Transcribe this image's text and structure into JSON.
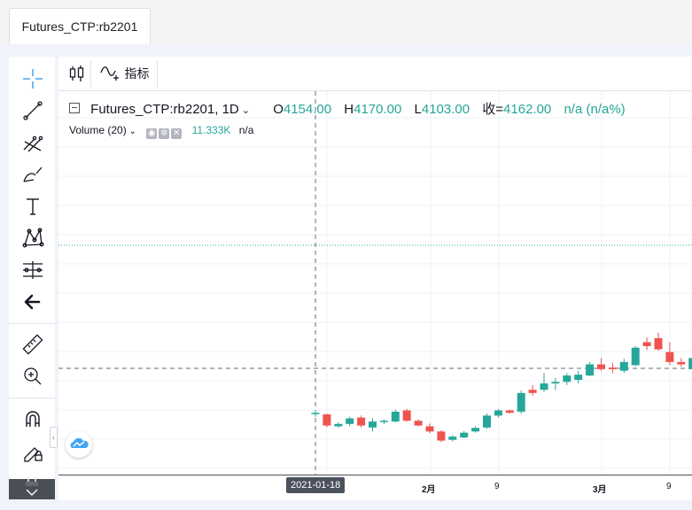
{
  "tab": {
    "label": "Futures_CTP:rb2201"
  },
  "toolbar": {
    "indicators_label": "指标"
  },
  "legend": {
    "symbol": "Futures_CTP:rb2201, 1D",
    "open_label": "O",
    "open": "4154.00",
    "high_label": "H",
    "high": "4170.00",
    "low_label": "L",
    "low": "4103.00",
    "close_label": "收=",
    "close": "4162.00",
    "change": "n/a (n/a%)"
  },
  "volume": {
    "label": "Volume (20)",
    "value": "11.333K",
    "extra": "n/a"
  },
  "crosshair": {
    "date": "2021-01-18"
  },
  "time_axis": {
    "ticks": [
      "2月",
      "9",
      "3月",
      "9"
    ]
  },
  "left_tools": [
    "crosshair-icon",
    "trend-line-icon",
    "fib-icon",
    "brush-icon",
    "text-icon",
    "pattern-icon",
    "measure-icon",
    "back-arrow-icon",
    "ruler-icon",
    "zoom-in-icon",
    "magnet-icon",
    "lock-drawing-icon",
    "lock-icon"
  ],
  "colors": {
    "up": "#26a69a",
    "down": "#ef5350",
    "accent": "#2196f3"
  },
  "chart_data": {
    "type": "candlestick",
    "series": [
      {
        "o": 4160,
        "h": 4168,
        "l": 4152,
        "c": 4162,
        "dir": "up"
      },
      {
        "o": 4158,
        "h": 4160,
        "l": 4126,
        "c": 4130,
        "dir": "down"
      },
      {
        "o": 4128,
        "h": 4138,
        "l": 4124,
        "c": 4134,
        "dir": "up"
      },
      {
        "o": 4134,
        "h": 4152,
        "l": 4128,
        "c": 4148,
        "dir": "up"
      },
      {
        "o": 4150,
        "h": 4155,
        "l": 4125,
        "c": 4130,
        "dir": "down"
      },
      {
        "o": 4125,
        "h": 4148,
        "l": 4115,
        "c": 4140,
        "dir": "up"
      },
      {
        "o": 4140,
        "h": 4146,
        "l": 4134,
        "c": 4142,
        "dir": "up"
      },
      {
        "o": 4140,
        "h": 4170,
        "l": 4138,
        "c": 4165,
        "dir": "up"
      },
      {
        "o": 4168,
        "h": 4172,
        "l": 4140,
        "c": 4142,
        "dir": "down"
      },
      {
        "o": 4142,
        "h": 4146,
        "l": 4128,
        "c": 4130,
        "dir": "down"
      },
      {
        "o": 4128,
        "h": 4135,
        "l": 4110,
        "c": 4115,
        "dir": "down"
      },
      {
        "o": 4115,
        "h": 4118,
        "l": 4088,
        "c": 4092,
        "dir": "down"
      },
      {
        "o": 4094,
        "h": 4106,
        "l": 4090,
        "c": 4102,
        "dir": "up"
      },
      {
        "o": 4100,
        "h": 4116,
        "l": 4098,
        "c": 4112,
        "dir": "up"
      },
      {
        "o": 4115,
        "h": 4128,
        "l": 4112,
        "c": 4124,
        "dir": "up"
      },
      {
        "o": 4125,
        "h": 4160,
        "l": 4122,
        "c": 4155,
        "dir": "up"
      },
      {
        "o": 4155,
        "h": 4172,
        "l": 4150,
        "c": 4168,
        "dir": "up"
      },
      {
        "o": 4168,
        "h": 4170,
        "l": 4160,
        "c": 4162,
        "dir": "down"
      },
      {
        "o": 4165,
        "h": 4218,
        "l": 4160,
        "c": 4212,
        "dir": "up"
      },
      {
        "o": 4212,
        "h": 4232,
        "l": 4205,
        "c": 4220,
        "dir": "down"
      },
      {
        "o": 4220,
        "h": 4262,
        "l": 4215,
        "c": 4236,
        "dir": "up"
      },
      {
        "o": 4236,
        "h": 4250,
        "l": 4220,
        "c": 4240,
        "dir": "up"
      },
      {
        "o": 4240,
        "h": 4262,
        "l": 4232,
        "c": 4256,
        "dir": "up"
      },
      {
        "o": 4245,
        "h": 4268,
        "l": 4236,
        "c": 4258,
        "dir": "up"
      },
      {
        "o": 4256,
        "h": 4290,
        "l": 4254,
        "c": 4284,
        "dir": "up"
      },
      {
        "o": 4284,
        "h": 4300,
        "l": 4268,
        "c": 4272,
        "dir": "down"
      },
      {
        "o": 4272,
        "h": 4288,
        "l": 4262,
        "c": 4276,
        "dir": "down"
      },
      {
        "o": 4268,
        "h": 4298,
        "l": 4262,
        "c": 4290,
        "dir": "up"
      },
      {
        "o": 4282,
        "h": 4330,
        "l": 4280,
        "c": 4326,
        "dir": "up"
      },
      {
        "o": 4330,
        "h": 4352,
        "l": 4320,
        "c": 4340,
        "dir": "down"
      },
      {
        "o": 4350,
        "h": 4364,
        "l": 4318,
        "c": 4322,
        "dir": "down"
      },
      {
        "o": 4315,
        "h": 4340,
        "l": 4282,
        "c": 4290,
        "dir": "down"
      },
      {
        "o": 4290,
        "h": 4300,
        "l": 4278,
        "c": 4284,
        "dir": "down"
      },
      {
        "o": 4272,
        "h": 4315,
        "l": 4250,
        "c": 4300,
        "dir": "up"
      }
    ]
  }
}
